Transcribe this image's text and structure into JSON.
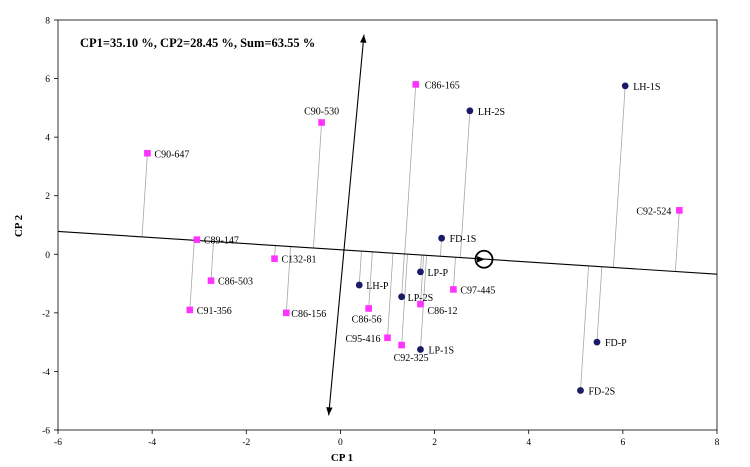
{
  "chart_data": {
    "type": "scatter",
    "title": "CP1=35.10 %, CP2=28.45 %, Sum=63.55 %",
    "xlabel": "CP 1",
    "ylabel": "CP 2",
    "xlim": [
      -6,
      8
    ],
    "ylim": [
      -6,
      8
    ],
    "xticks": [
      "-6",
      "-4",
      "-2",
      "0",
      "2",
      "4",
      "6",
      "8"
    ],
    "yticks": [
      "-6",
      "-4",
      "-2",
      "0",
      "2",
      "4",
      "6",
      "8"
    ],
    "grid": false,
    "legend": "none",
    "colors": {
      "square_series": "#ff33ff",
      "circle_series": "#1a1a66",
      "lines": "#000000",
      "projection": "#a6a6a6"
    },
    "series": [
      {
        "marker": "square",
        "points": [
          {
            "label": "C86-165",
            "x": 1.6,
            "y": 5.8
          },
          {
            "label": "C90-530",
            "x": -0.4,
            "y": 4.5
          },
          {
            "label": "C90-647",
            "x": -4.1,
            "y": 3.45
          },
          {
            "label": "C92-524",
            "x": 7.2,
            "y": 1.5
          },
          {
            "label": "C89-147",
            "x": -3.05,
            "y": 0.5
          },
          {
            "label": "C132-81",
            "x": -1.4,
            "y": -0.15
          },
          {
            "label": "C86-503",
            "x": -2.75,
            "y": -0.9
          },
          {
            "label": "C91-356",
            "x": -3.2,
            "y": -1.9
          },
          {
            "label": "C86-156",
            "x": -1.15,
            "y": -2.0
          },
          {
            "label": "C86-56",
            "x": 0.6,
            "y": -1.85
          },
          {
            "label": "C95-416",
            "x": 1.0,
            "y": -2.85
          },
          {
            "label": "C92-325",
            "x": 1.3,
            "y": -3.1
          },
          {
            "label": "C86-12",
            "x": 1.7,
            "y": -1.7
          },
          {
            "label": "C97-445",
            "x": 2.4,
            "y": -1.2
          }
        ]
      },
      {
        "marker": "circle",
        "points": [
          {
            "label": "LH-1S",
            "x": 6.05,
            "y": 5.75
          },
          {
            "label": "LH-2S",
            "x": 2.75,
            "y": 4.9
          },
          {
            "label": "FD-1S",
            "x": 2.15,
            "y": 0.55
          },
          {
            "label": "LP-P",
            "x": 1.7,
            "y": -0.6
          },
          {
            "label": "LH-P",
            "x": 0.4,
            "y": -1.05
          },
          {
            "label": "LP-2S",
            "x": 1.3,
            "y": -1.45
          },
          {
            "label": "LP-1S",
            "x": 1.7,
            "y": -3.25
          },
          {
            "label": "FD-P",
            "x": 5.45,
            "y": -3.0
          },
          {
            "label": "FD-2S",
            "x": 5.1,
            "y": -4.65
          }
        ]
      }
    ],
    "overlay": {
      "regression_line": [
        [
          -6,
          0.78
        ],
        [
          8,
          -0.68
        ]
      ],
      "arrow_line": [
        [
          0.5,
          7.5
        ],
        [
          -0.25,
          -5.5
        ]
      ],
      "target_circle": [
        3.05,
        -0.17
      ]
    }
  }
}
